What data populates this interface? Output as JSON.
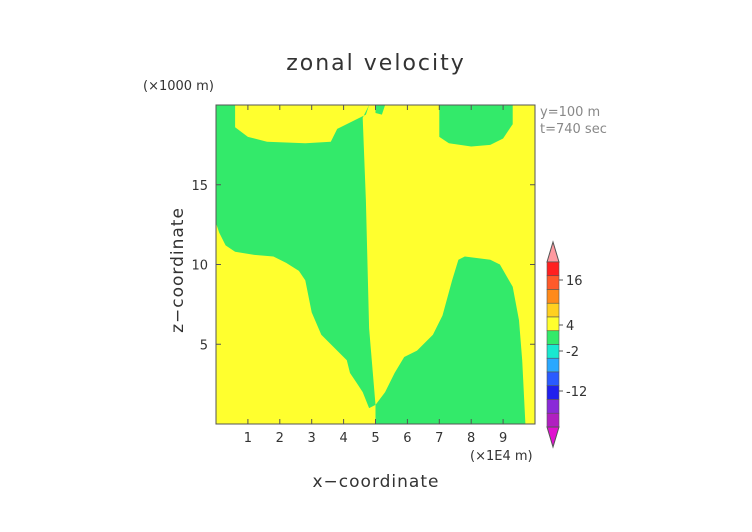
{
  "chart_data": {
    "type": "heatmap",
    "title": "zonal velocity",
    "xlabel": "x−coordinate",
    "ylabel": "z−coordinate",
    "x_unit": "(×1E4 m)",
    "y_unit": "(×1000 m)",
    "info": [
      "y=100  m",
      "t=740  sec"
    ],
    "xlim": [
      0,
      10
    ],
    "ylim": [
      0,
      20
    ],
    "x_ticks": [
      1,
      2,
      3,
      4,
      5,
      6,
      7,
      8,
      9
    ],
    "y_ticks": [
      5,
      10,
      15
    ],
    "background_fill": "#ffff2e",
    "regions": [
      {
        "name": "negative",
        "color": "#33ea6a",
        "polygons": [
          [
            [
              0.6,
              20
            ],
            [
              0.6,
              18.6
            ],
            [
              1.0,
              18.0
            ],
            [
              1.6,
              17.7
            ],
            [
              2.8,
              17.6
            ],
            [
              3.6,
              17.7
            ],
            [
              3.8,
              18.5
            ],
            [
              4.7,
              19.4
            ],
            [
              4.8,
              20
            ],
            [
              4.6,
              19.2
            ],
            [
              4.7,
              14
            ],
            [
              4.8,
              6
            ],
            [
              5.0,
              1.2
            ],
            [
              4.8,
              1.0
            ],
            [
              4.6,
              2.0
            ],
            [
              4.4,
              2.6
            ],
            [
              4.2,
              3.2
            ],
            [
              4.1,
              4.0
            ],
            [
              3.6,
              5.0
            ],
            [
              3.3,
              5.6
            ],
            [
              3.0,
              7.0
            ],
            [
              2.8,
              9.0
            ],
            [
              2.6,
              9.6
            ],
            [
              2.2,
              10.1
            ],
            [
              1.8,
              10.5
            ],
            [
              1.2,
              10.6
            ],
            [
              0.6,
              10.8
            ],
            [
              0.3,
              11.2
            ],
            [
              0.1,
              12.0
            ],
            [
              0,
              12.6
            ],
            [
              0,
              20
            ]
          ],
          [
            [
              5.0,
              0
            ],
            [
              5.0,
              1.2
            ],
            [
              5.3,
              2.0
            ],
            [
              5.6,
              3.2
            ],
            [
              5.9,
              4.2
            ],
            [
              6.3,
              4.6
            ],
            [
              6.8,
              5.6
            ],
            [
              7.1,
              6.8
            ],
            [
              7.4,
              9.0
            ],
            [
              7.6,
              10.3
            ],
            [
              7.8,
              10.5
            ],
            [
              8.6,
              10.3
            ],
            [
              8.9,
              10.0
            ],
            [
              9.3,
              8.6
            ],
            [
              9.5,
              6.5
            ],
            [
              9.6,
              4.0
            ],
            [
              9.65,
              2.0
            ],
            [
              9.7,
              0
            ],
            [
              5.0,
              0
            ]
          ],
          [
            [
              7.0,
              20
            ],
            [
              7.0,
              18.0
            ],
            [
              7.3,
              17.6
            ],
            [
              8.0,
              17.4
            ],
            [
              8.6,
              17.5
            ],
            [
              9.0,
              17.9
            ],
            [
              9.3,
              18.8
            ],
            [
              9.3,
              20
            ],
            [
              7.0,
              20
            ]
          ],
          [
            [
              5.0,
              20
            ],
            [
              5.0,
              19.5
            ],
            [
              5.2,
              19.4
            ],
            [
              5.3,
              20
            ],
            [
              5.0,
              20
            ]
          ]
        ]
      }
    ],
    "colorbar": {
      "labels": [
        16,
        4,
        -2,
        -12
      ],
      "colors": [
        "#ff9aa0",
        "#ff2020",
        "#ff5a2a",
        "#ff8a1a",
        "#ffd020",
        "#ffff2e",
        "#33ea6a",
        "#19e8d0",
        "#2aa8ff",
        "#2a5aff",
        "#2020ee",
        "#8a2ad8",
        "#b020c0",
        "#e010d0"
      ]
    }
  }
}
